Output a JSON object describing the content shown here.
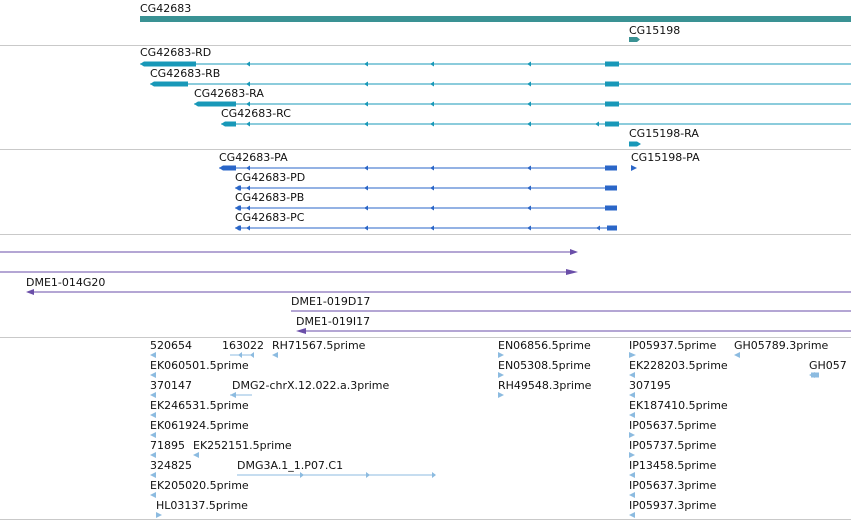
{
  "colors": {
    "gene": "#3a9294",
    "mrna": "#1898b8",
    "cds": "#2a66c8",
    "clone": "#6a4ea8",
    "est": "#8cbbe0",
    "separator": "#c9c9c9",
    "text": "#111111"
  },
  "tracks": {
    "genes": {
      "labels": [
        "CG42683",
        "CG15198"
      ]
    },
    "transcripts": {
      "labels": [
        "CG42683-RD",
        "CG42683-RB",
        "CG42683-RA",
        "CG42683-RC",
        "CG15198-RA"
      ]
    },
    "proteins": {
      "labels": [
        "CG42683-PA",
        "CG15198-PA",
        "CG42683-PD",
        "CG42683-PB",
        "CG42683-PC"
      ]
    },
    "clones": {
      "labels": [
        "DME1-014G20",
        "DME1-019D17",
        "DME1-019I17"
      ]
    },
    "ests": {
      "labels": [
        "520654",
        "163022",
        "RH71567.5prime",
        "EN06856.5prime",
        "IP05937.5prime",
        "GH05789.3prime",
        "EK060501.5prime",
        "EN05308.5prime",
        "EK228203.5prime",
        "GH057",
        "370147",
        "DMG2-chrX.12.022.a.3prime",
        "RH49548.3prime",
        "307195",
        "EK246531.5prime",
        "EK187410.5prime",
        "EK061924.5prime",
        "IP05637.5prime",
        "71895",
        "EK252151.5prime",
        "IP05737.5prime",
        "324825",
        "DMG3A.1_1.P07.C1",
        "IP13458.5prime",
        "EK205020.5prime",
        "IP05637.3prime",
        "HL03137.5prime",
        "IP05937.3prime"
      ]
    }
  }
}
